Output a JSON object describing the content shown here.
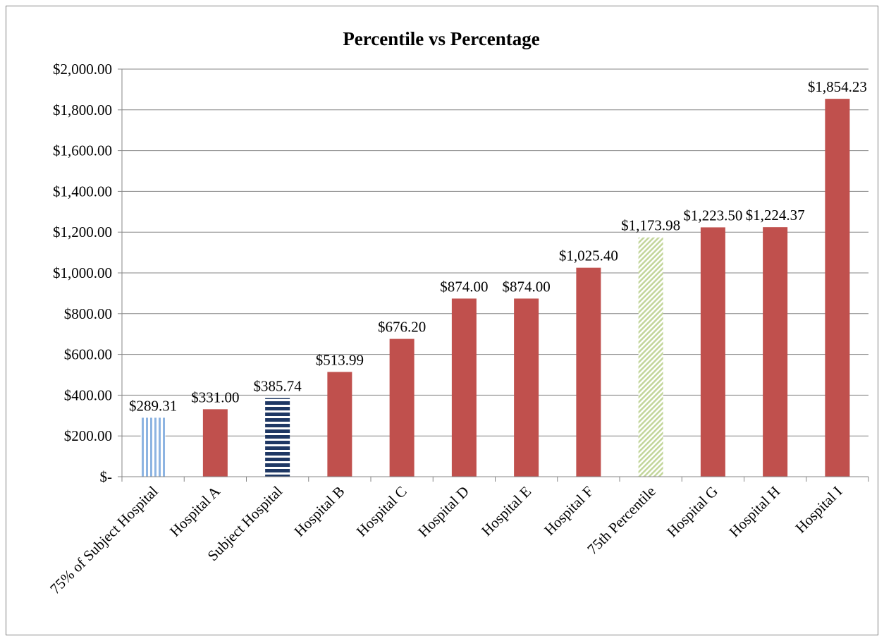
{
  "chart_data": {
    "type": "bar",
    "title": "Percentile vs Percentage",
    "xlabel": "",
    "ylabel": "",
    "ylim": [
      0,
      2000
    ],
    "yticks": [
      0,
      200,
      400,
      600,
      800,
      1000,
      1200,
      1400,
      1600,
      1800,
      2000
    ],
    "ytick_labels": [
      "$-",
      "$200.00",
      "$400.00",
      "$600.00",
      "$800.00",
      "$1,000.00",
      "$1,200.00",
      "$1,400.00",
      "$1,600.00",
      "$1,800.00",
      "$2,000.00"
    ],
    "grid": true,
    "legend": "none",
    "categories": [
      "75% of Subject Hospital",
      "Hospital A",
      "Subject Hospital",
      "Hospital B",
      "Hospital C",
      "Hospital D",
      "Hospital E",
      "Hospital F",
      "75th Percentile",
      "Hospital G",
      "Hospital H",
      "Hospital I"
    ],
    "values": [
      289.31,
      331.0,
      385.74,
      513.99,
      676.2,
      874.0,
      874.0,
      1025.4,
      1173.98,
      1223.5,
      1224.37,
      1854.23
    ],
    "data_labels": [
      "$289.31",
      "$331.00",
      "$385.74",
      "$513.99",
      "$676.20",
      "$874.00",
      "$874.00",
      "$1,025.40",
      "$1,173.98",
      "$1,223.50",
      "$1,224.37",
      "$1,854.23"
    ],
    "bar_styles": [
      "vstripe",
      "solid",
      "hstripe",
      "solid",
      "solid",
      "solid",
      "solid",
      "solid",
      "diagonal",
      "solid",
      "solid",
      "solid"
    ],
    "colors": {
      "bar": "#c0504d",
      "vstripe": "#8db4e2",
      "hstripe": "#1f3864",
      "diagonal": "#c3d69b",
      "grid": "#868686"
    }
  }
}
